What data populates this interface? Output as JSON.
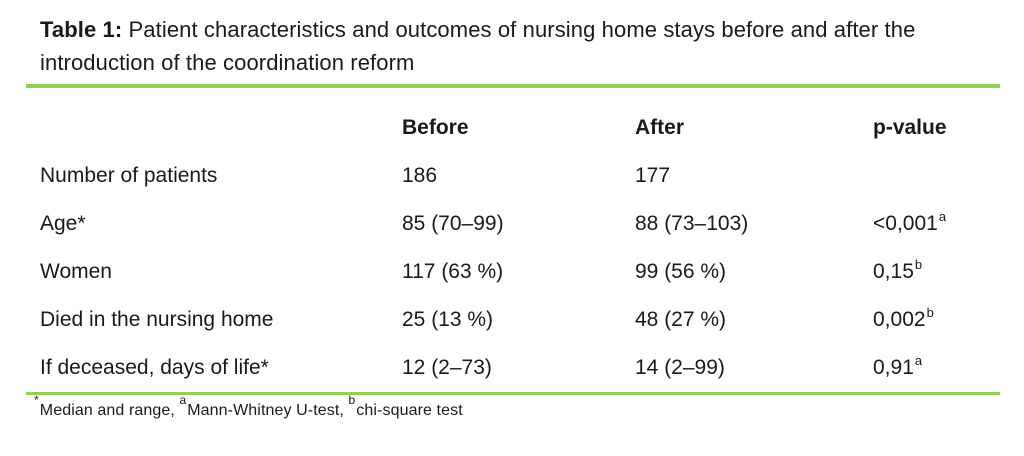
{
  "title": {
    "prefix": "Table 1:",
    "rest": " Patient characteristics and outcomes of nursing home stays before and after the introduction of the coordination reform"
  },
  "colors": {
    "accent_line": "#92d050",
    "text": "#1a1a1a",
    "background": "#ffffff"
  },
  "table": {
    "header": {
      "label": "",
      "before": "Before",
      "after": "After",
      "pvalue": "p-value"
    },
    "rows": [
      {
        "label": "Number of patients",
        "before": "186",
        "after": "177",
        "p": "",
        "p_sup": ""
      },
      {
        "label": "Age*",
        "before": "85 (70–99)",
        "after": "88 (73–103)",
        "p": "<0,001",
        "p_sup": "a"
      },
      {
        "label": "Women",
        "before": "117 (63 %)",
        "after": "99 (56 %)",
        "p": "0,15",
        "p_sup": "b"
      },
      {
        "label": "Died in the nursing home",
        "before": "25 (13 %)",
        "after": "48 (27 %)",
        "p": "0,002",
        "p_sup": "b"
      },
      {
        "label": "If deceased, days of life*",
        "before": "12 (2–73)",
        "after": "14 (2–99)",
        "p": "0,91",
        "p_sup": "a"
      }
    ]
  },
  "footnote": {
    "segments": [
      {
        "sup": "*",
        "text": "Median and range, "
      },
      {
        "sup": "a",
        "text": "Mann-Whitney U-test, "
      },
      {
        "sup": "b",
        "text": "chi-square test"
      }
    ]
  }
}
